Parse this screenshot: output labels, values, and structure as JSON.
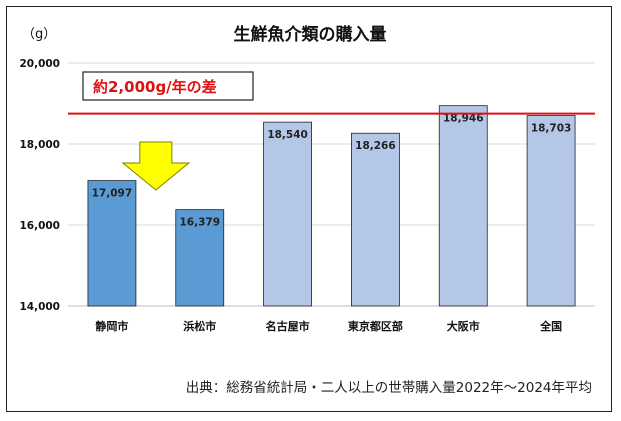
{
  "chart_data": {
    "type": "bar",
    "title": "生鮮魚介類の購入量",
    "ylabel": "（g）",
    "categories": [
      "静岡市",
      "浜松市",
      "名古屋市",
      "東京都区部",
      "大阪市",
      "全国"
    ],
    "values": [
      17097,
      16379,
      18540,
      18266,
      18946,
      18703
    ],
    "data_labels": [
      "17,097",
      "16,379",
      "18,540",
      "18,266",
      "18,946",
      "18,703"
    ],
    "highlight": [
      true,
      true,
      false,
      false,
      false,
      false
    ],
    "ylim": [
      14000,
      20000
    ],
    "yticks": [
      14000,
      16000,
      18000,
      20000
    ],
    "ytick_labels": [
      "14,000",
      "16,000",
      "18,000",
      "20,000"
    ],
    "grid": true,
    "reference_line": {
      "value": 18750,
      "color": "#e01010"
    },
    "annotation": "約2,000g/年の差",
    "colors": {
      "highlight_bar": "#5b9bd5",
      "normal_bar": "#b4c7e7",
      "bar_edge": "#222222",
      "arrow_fill": "#ffff00",
      "arrow_edge": "#7f7f00",
      "reference_line": "#e01010"
    },
    "source": "出典：総務省統計局・二人以上の世帯購入量2022年～2024年平均"
  }
}
